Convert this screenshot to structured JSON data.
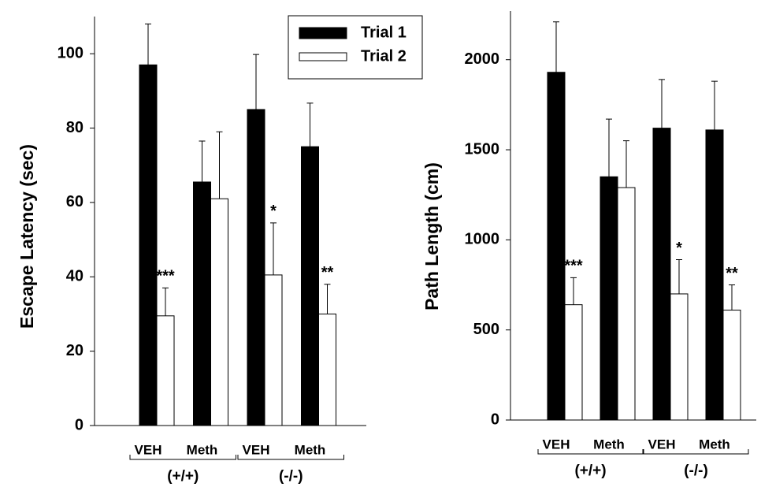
{
  "chart_data": [
    {
      "type": "bar",
      "ylabel": "Escape Latency (sec)",
      "categories": [
        "VEH",
        "Meth",
        "VEH",
        "Meth"
      ],
      "groups": [
        "(+/+)",
        "(-/-)"
      ],
      "series": [
        {
          "name": "Trial 1",
          "color": "#000000",
          "values": [
            97,
            65.5,
            85,
            75
          ],
          "errors": [
            11,
            11,
            14.8,
            11.7
          ]
        },
        {
          "name": "Trial 2",
          "color": "#ffffff",
          "values": [
            29.5,
            61,
            40.5,
            30
          ],
          "errors": [
            7.5,
            18,
            14,
            8
          ],
          "markers": [
            "***",
            null,
            "*",
            "**"
          ]
        }
      ],
      "ylim": [
        0,
        110
      ],
      "yticks": [
        0,
        20,
        40,
        60,
        80,
        100
      ]
    },
    {
      "type": "bar",
      "ylabel": "Path Length (cm)",
      "categories": [
        "VEH",
        "Meth",
        "VEH",
        "Meth"
      ],
      "groups": [
        "(+/+)",
        "(-/-)"
      ],
      "series": [
        {
          "color": "#000000",
          "values": [
            1930,
            1350,
            1620,
            1610
          ],
          "errors": [
            280,
            320,
            270,
            270
          ]
        },
        {
          "color": "#ffffff",
          "values": [
            640,
            1290,
            700,
            610
          ],
          "errors": [
            150,
            260,
            190,
            140
          ],
          "markers": [
            "***",
            null,
            "*",
            "**"
          ]
        }
      ],
      "ylim": [
        0,
        2270
      ],
      "yticks": [
        0,
        500,
        1000,
        1500,
        2000
      ]
    }
  ]
}
